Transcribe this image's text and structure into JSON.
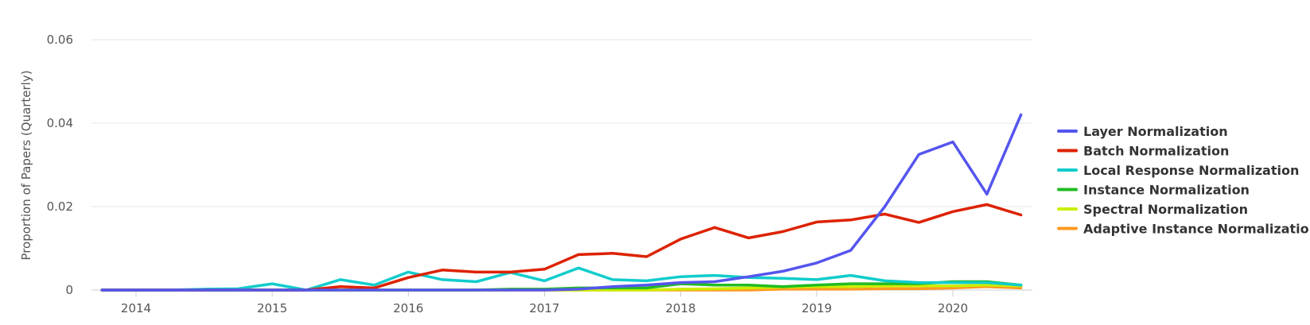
{
  "chart_data": {
    "type": "line",
    "title": "",
    "xlabel": "",
    "ylabel": "Proportion of Papers (Quarterly)",
    "xlim": [
      2013.75,
      2020.5
    ],
    "ylim": [
      0,
      0.06
    ],
    "y_ticks": [
      0,
      0.02,
      0.04,
      0.06
    ],
    "y_tick_labels": [
      "0",
      "0.02",
      "0.04",
      "0.06"
    ],
    "x_ticks": [
      2014,
      2015,
      2016,
      2017,
      2018,
      2019,
      2020
    ],
    "x_tick_labels": [
      "2014",
      "2015",
      "2016",
      "2017",
      "2018",
      "2019",
      "2020"
    ],
    "grid": true,
    "legend_position": "right",
    "x": [
      2013.75,
      2014.0,
      2014.25,
      2014.5,
      2014.75,
      2015.0,
      2015.25,
      2015.5,
      2015.75,
      2016.0,
      2016.25,
      2016.5,
      2016.75,
      2017.0,
      2017.25,
      2017.5,
      2017.75,
      2018.0,
      2018.25,
      2018.5,
      2018.75,
      2019.0,
      2019.25,
      2019.5,
      2019.75,
      2020.0,
      2020.25,
      2020.5
    ],
    "series": [
      {
        "name": "Layer Normalization",
        "color": "#5555ee",
        "values": [
          0,
          0,
          0,
          0,
          0,
          0,
          0,
          0,
          0,
          0,
          0,
          0,
          0,
          0,
          0.0002,
          0.0008,
          0.0012,
          0.0018,
          0.002,
          0.0032,
          0.0045,
          0.0065,
          0.0095,
          0.02,
          0.0325,
          0.0355,
          0.023,
          0.042
        ]
      },
      {
        "name": "Batch Normalization",
        "color": "#dd2200",
        "values": [
          0,
          0,
          0,
          0,
          0,
          0,
          0,
          0.0008,
          0.0005,
          0.003,
          0.0048,
          0.0043,
          0.0043,
          0.005,
          0.0085,
          0.0088,
          0.008,
          0.0122,
          0.015,
          0.0125,
          0.014,
          0.0163,
          0.0168,
          0.0182,
          0.0162,
          0.0188,
          0.0205,
          0.018
        ]
      },
      {
        "name": "Local Response Normalization",
        "color": "#11cccc",
        "values": [
          0,
          0,
          0,
          0.0002,
          0.0003,
          0.0015,
          0,
          0.0025,
          0.0012,
          0.0043,
          0.0025,
          0.002,
          0.0042,
          0.0022,
          0.0053,
          0.0025,
          0.0022,
          0.0032,
          0.0035,
          0.003,
          0.0028,
          0.0025,
          0.0035,
          0.0022,
          0.0018,
          0.0018,
          0.0018,
          0.0012
        ]
      },
      {
        "name": "Instance Normalization",
        "color": "#22bb22",
        "values": [
          0,
          0,
          0,
          0,
          0,
          0,
          0,
          0,
          0,
          0,
          0,
          0,
          0.0002,
          0.0002,
          0.0005,
          0.0005,
          0.0005,
          0.0015,
          0.0012,
          0.0012,
          0.0008,
          0.0012,
          0.0015,
          0.0015,
          0.0015,
          0.002,
          0.002,
          0.0012
        ]
      },
      {
        "name": "Spectral Normalization",
        "color": "#ccee00",
        "values": [
          0,
          0,
          0,
          0,
          0,
          0,
          0,
          0,
          0,
          0,
          0,
          0,
          0,
          0,
          0,
          0,
          0,
          0.0002,
          0.0003,
          0.0005,
          0.0007,
          0.0008,
          0.0008,
          0.001,
          0.001,
          0.001,
          0.0012,
          0.001
        ]
      },
      {
        "name": "Adaptive Instance Normalization",
        "color": "#ff9922",
        "values": [
          0,
          0,
          0,
          0,
          0,
          0,
          0,
          0,
          0,
          0,
          0,
          0,
          0,
          0,
          0,
          0,
          0,
          0,
          0,
          0,
          0.0002,
          0.0002,
          0.0002,
          0.0003,
          0.0003,
          0.0005,
          0.0008,
          0.0005
        ]
      }
    ]
  }
}
